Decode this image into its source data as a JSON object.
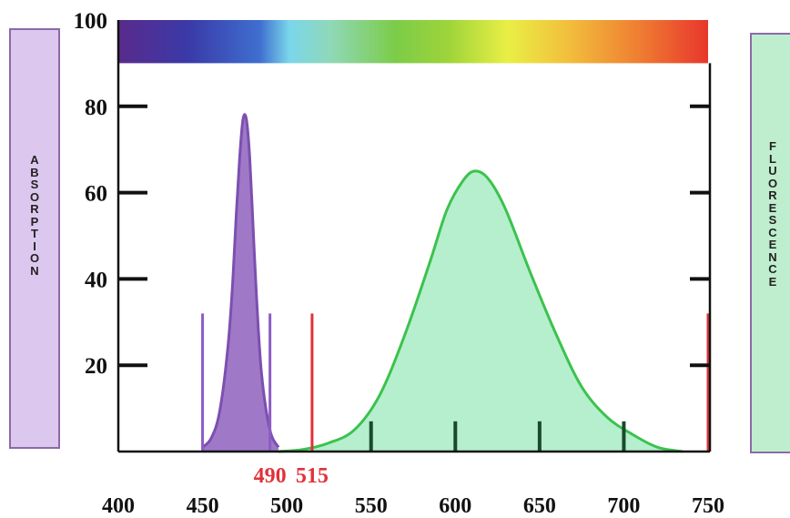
{
  "left_label": "ABSORPTION",
  "right_label": "FLUORESCENCE",
  "colors": {
    "absorption": "#9a72c4",
    "absorption_stroke": "#7c4fb0",
    "fluorescence": "#a8ecc4",
    "fluorescence_stroke": "#3cc24e",
    "marker_red": "#e0323a",
    "marker_purple": "#8c5cc4",
    "marker_dark": "#1b4a2a",
    "label_box_left": "#dcc8ee",
    "label_box_right": "#bfeecf"
  },
  "chart_data": {
    "type": "area",
    "title": "",
    "xlabel": "",
    "ylabel": "",
    "xlim": [
      400,
      750
    ],
    "ylim": [
      0,
      100
    ],
    "x_ticks": [
      400,
      450,
      500,
      550,
      600,
      650,
      700,
      750
    ],
    "y_ticks": [
      20,
      40,
      60,
      80,
      100
    ],
    "spectrum_bar": {
      "y_from": 90,
      "y_to": 100
    },
    "series": [
      {
        "key": "absorption",
        "x": [
          450,
          455,
          460,
          465,
          468,
          470,
          472,
          474,
          476,
          478,
          480,
          482,
          485,
          490,
          495
        ],
        "y": [
          1,
          3,
          9,
          24,
          40,
          55,
          68,
          77,
          77,
          68,
          52,
          36,
          18,
          5,
          1
        ]
      },
      {
        "key": "fluorescence",
        "x": [
          495,
          510,
          525,
          540,
          555,
          570,
          585,
          595,
          605,
          612,
          620,
          630,
          645,
          660,
          675,
          690,
          705,
          720,
          735
        ],
        "y": [
          0,
          0.5,
          2,
          5,
          13,
          27,
          44,
          56,
          63,
          65,
          63,
          56,
          41,
          27,
          15,
          8,
          4,
          1,
          0
        ]
      }
    ],
    "markers": [
      {
        "x": 450,
        "y_top": 32,
        "color": "purple"
      },
      {
        "x": 490,
        "y_top": 32,
        "color": "purple"
      },
      {
        "x": 515,
        "y_top": 32,
        "color": "red"
      },
      {
        "x": 550,
        "y_top": 7,
        "color": "dark"
      },
      {
        "x": 600,
        "y_top": 7,
        "color": "dark"
      },
      {
        "x": 650,
        "y_top": 7,
        "color": "dark"
      },
      {
        "x": 700,
        "y_top": 7,
        "color": "dark"
      },
      {
        "x": 750,
        "y_top": 32,
        "color": "red"
      }
    ],
    "annotations": [
      {
        "text": "490",
        "x": 490,
        "color": "red"
      },
      {
        "text": "515",
        "x": 515,
        "color": "red"
      }
    ]
  }
}
